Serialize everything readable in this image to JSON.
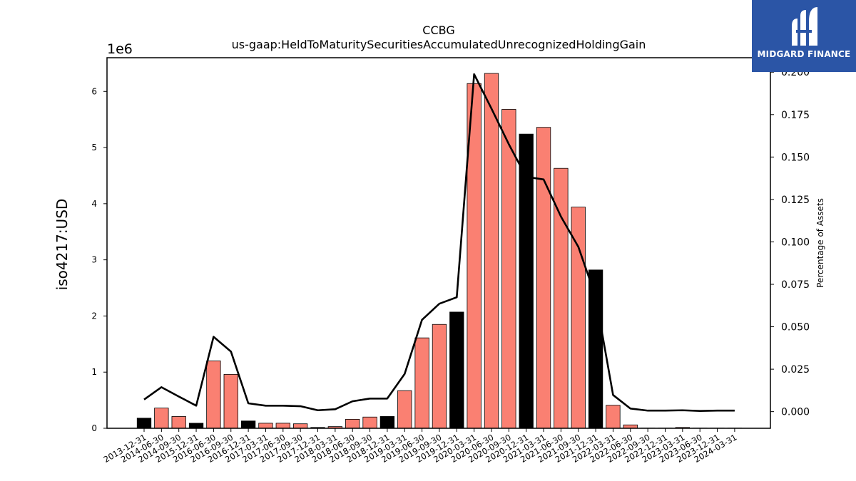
{
  "chart_data": {
    "type": "bar",
    "title": "CCBG",
    "subtitle": "us-gaap:HeldToMaturitySecuritiesAccumulatedUnrecognizedHoldingGain",
    "ylabel": "iso4217:USD",
    "y_multiplier_label": "1e6",
    "y2label": "Percentage of Assets",
    "ylim": [
      0,
      6600000
    ],
    "y2lim": [
      -0.0098,
      0.2085
    ],
    "yticks": [
      0,
      1000000,
      2000000,
      3000000,
      4000000,
      5000000,
      6000000
    ],
    "ytick_labels": [
      "0",
      "1",
      "2",
      "3",
      "4",
      "5",
      "6"
    ],
    "y2ticks": [
      0.0,
      0.025,
      0.05,
      0.075,
      0.1,
      0.125,
      0.15,
      0.175,
      0.2
    ],
    "y2tick_labels": [
      "0.000",
      "0.025",
      "0.050",
      "0.075",
      "0.100",
      "0.125",
      "0.150",
      "0.175",
      "0.200"
    ],
    "categories": [
      "2013-12-31",
      "2014-06-30",
      "2014-09-30",
      "2015-12-31",
      "2016-06-30",
      "2016-09-30",
      "2016-12-31",
      "2017-03-31",
      "2017-06-30",
      "2017-09-30",
      "2017-12-31",
      "2018-03-31",
      "2018-06-30",
      "2018-09-30",
      "2018-12-31",
      "2019-03-31",
      "2019-06-30",
      "2019-09-30",
      "2019-12-31",
      "2020-03-31",
      "2020-06-30",
      "2020-09-30",
      "2020-12-31",
      "2021-03-31",
      "2021-06-30",
      "2021-09-30",
      "2021-12-31",
      "2022-03-31",
      "2022-06-30",
      "2022-09-30",
      "2022-12-31",
      "2023-03-31",
      "2023-06-30",
      "2023-12-31",
      "2024-03-31"
    ],
    "series": [
      {
        "kind": "bar",
        "values": [
          180000,
          360000,
          210000,
          90000,
          1200000,
          960000,
          130000,
          90000,
          90000,
          80000,
          15000,
          30000,
          160000,
          200000,
          210000,
          670000,
          1610000,
          1850000,
          2070000,
          6140000,
          6320000,
          5680000,
          5240000,
          5360000,
          4630000,
          3940000,
          2820000,
          410000,
          60000,
          3000,
          3000,
          15000,
          3000,
          3000,
          3000
        ],
        "fill_colors": [
          "#000000",
          "#fa8072",
          "#fa8072",
          "#000000",
          "#fa8072",
          "#fa8072",
          "#000000",
          "#fa8072",
          "#fa8072",
          "#fa8072",
          "#000000",
          "#fa8072",
          "#fa8072",
          "#fa8072",
          "#000000",
          "#fa8072",
          "#fa8072",
          "#fa8072",
          "#000000",
          "#fa8072",
          "#fa8072",
          "#fa8072",
          "#000000",
          "#fa8072",
          "#fa8072",
          "#fa8072",
          "#000000",
          "#fa8072",
          "#fa8072",
          "#fa8072",
          "#000000",
          "#fa8072",
          "#fa8072",
          "#000000",
          "#fa8072"
        ]
      },
      {
        "kind": "line",
        "axis": "right",
        "color": "#000000",
        "values": [
          0.0071,
          0.0144,
          0.0089,
          0.0035,
          0.0441,
          0.0354,
          0.0049,
          0.0035,
          0.0035,
          0.0032,
          0.0008,
          0.0014,
          0.0061,
          0.0077,
          0.0077,
          0.0222,
          0.0541,
          0.0636,
          0.0674,
          0.1988,
          0.1785,
          0.1575,
          0.1383,
          0.1368,
          0.1149,
          0.0971,
          0.0676,
          0.0098,
          0.0018,
          0.0006,
          0.0006,
          0.0008,
          0.0004,
          0.0006,
          0.0006
        ]
      }
    ],
    "grid": false
  },
  "logo": {
    "text": "MIDGARD FINANCE",
    "icon": "midgard-logo-icon",
    "background": "#2b55a6"
  }
}
